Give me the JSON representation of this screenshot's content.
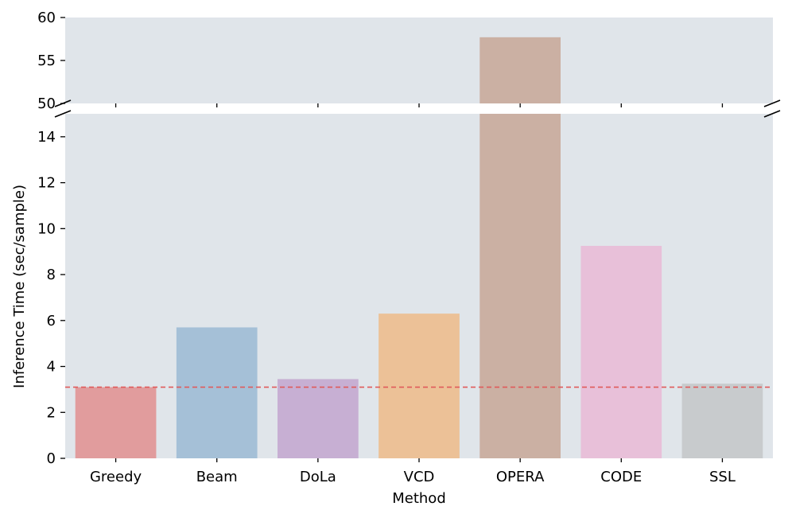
{
  "chart_data": {
    "type": "bar",
    "title": "",
    "xlabel": "Method",
    "ylabel": "Inference Time (sec/sample)",
    "categories": [
      "Greedy",
      "Beam",
      "DoLa",
      "VCD",
      "OPERA",
      "CODE",
      "SSL"
    ],
    "values": [
      3.1,
      5.7,
      3.45,
      6.3,
      57.7,
      9.25,
      3.25
    ],
    "colors": [
      "#e19c9d",
      "#a5c0d7",
      "#c7afd3",
      "#ecc197",
      "#cbb0a3",
      "#e8c0d9",
      "#c8cbcd"
    ],
    "broken_axis": {
      "upper": {
        "ylim": [
          50,
          60
        ],
        "ticks": [
          50,
          55,
          60
        ]
      },
      "lower": {
        "ylim": [
          0,
          15
        ],
        "ticks": [
          0,
          2,
          4,
          6,
          8,
          10,
          12,
          14
        ]
      }
    },
    "reference_line": {
      "value": 3.1,
      "color": "#e05a5a",
      "style": "dashed"
    },
    "background": "#e0e5ea"
  }
}
